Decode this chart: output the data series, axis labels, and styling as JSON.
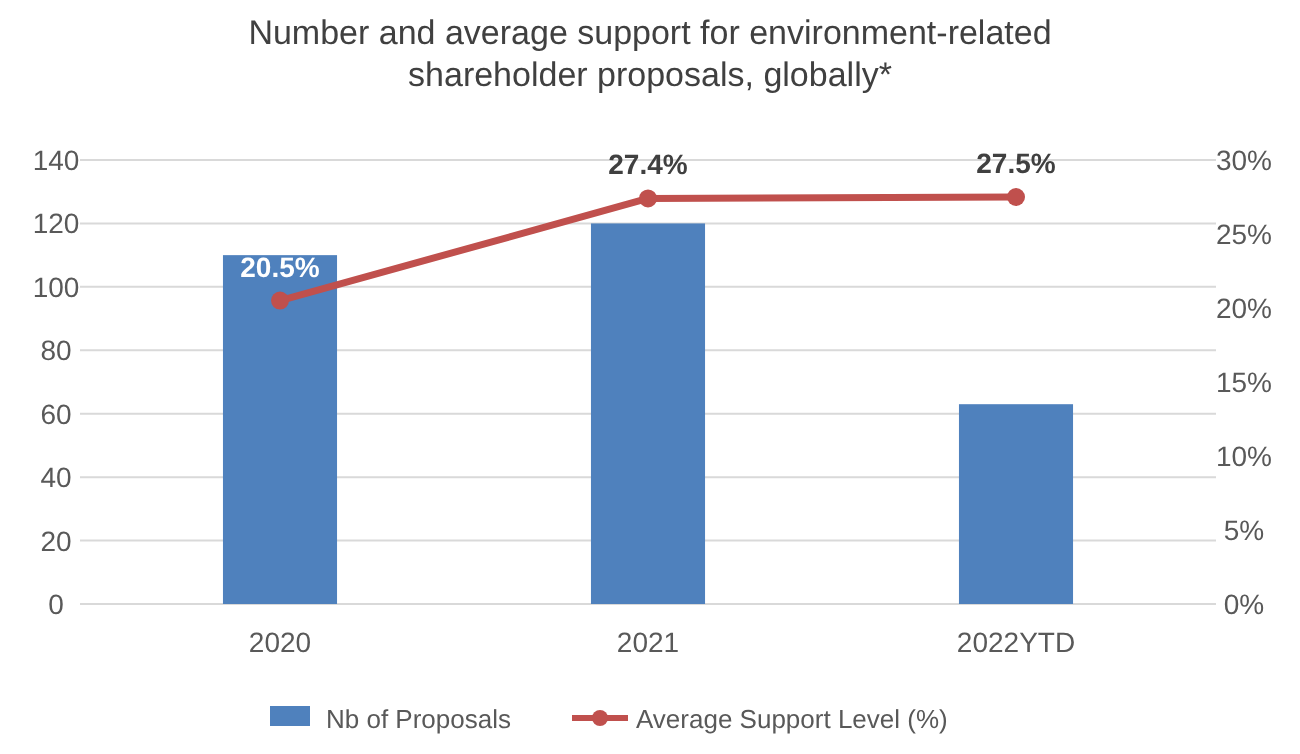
{
  "chart_data": {
    "type": "bar",
    "title": "Number and average support for environment-related shareholder proposals, globally*",
    "categories": [
      "2020",
      "2021",
      "2022YTD"
    ],
    "series": [
      {
        "name": "Nb of Proposals",
        "color": "#4f81bd",
        "values": [
          110,
          120,
          63
        ]
      },
      {
        "name": "Average Support Level (%)",
        "type": "line",
        "axis": "y2",
        "color": "#c0504d",
        "values": [
          20.5,
          27.4,
          27.5
        ],
        "value_labels": [
          "20.5%",
          "27.4%",
          "27.5%"
        ]
      }
    ],
    "ylim": [
      0,
      140
    ],
    "yticks": [
      0,
      20,
      40,
      60,
      80,
      100,
      120,
      140
    ],
    "y2lim": [
      0,
      30
    ],
    "y2ticks": [
      {
        "value": 0,
        "label": "0%"
      },
      {
        "value": 5,
        "label": "5%"
      },
      {
        "value": 10,
        "label": "10%"
      },
      {
        "value": 15,
        "label": "15%"
      },
      {
        "value": 20,
        "label": "20%"
      },
      {
        "value": 25,
        "label": "25%"
      },
      {
        "value": 30,
        "label": "30%"
      }
    ],
    "grid": "y",
    "legend": "bottom",
    "marker": "circle",
    "line_style": "solid"
  }
}
